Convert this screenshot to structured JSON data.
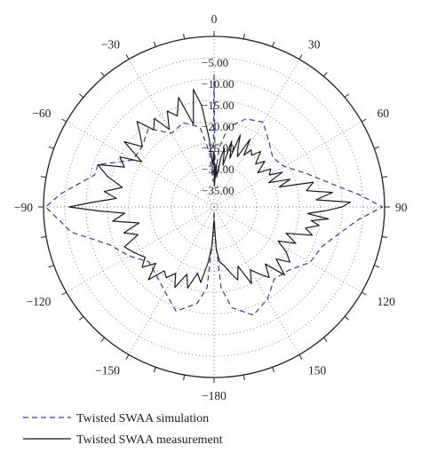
{
  "chart_data": {
    "type": "polar-line",
    "angular_unit": "degrees",
    "angle_zero": "top",
    "angle_direction": "clockwise",
    "angular_ticks": [
      0,
      30,
      60,
      90,
      120,
      150,
      -180,
      -150,
      -120,
      -90,
      -60,
      -30
    ],
    "angular_tick_labels": [
      "0",
      "30",
      "60",
      "90",
      "120",
      "150",
      "−180",
      "−150",
      "−120",
      "−90",
      "−60",
      "−30"
    ],
    "radial_range": [
      -40,
      0
    ],
    "radial_ticks": [
      -5,
      -10,
      -15,
      -20,
      -25,
      -30,
      -35
    ],
    "radial_tick_labels": [
      "−5.00",
      "−10.00",
      "−15.00",
      "−20.00",
      "−25.00",
      "−30.00",
      "−35.00"
    ],
    "grid": true,
    "legend_position": "bottom-left",
    "series": [
      {
        "name": "Twisted SWAA simulation",
        "style": "dashed",
        "color": "#3a3a9a",
        "angles": [
          0,
          2,
          5,
          10,
          20,
          30,
          40,
          50,
          60,
          70,
          80,
          85,
          90,
          95,
          100,
          110,
          120,
          130,
          140,
          150,
          160,
          170,
          175,
          178,
          180,
          182,
          185,
          190,
          200,
          210,
          220,
          230,
          240,
          250,
          260,
          270,
          275,
          280,
          285,
          290,
          300,
          310,
          320,
          330,
          340,
          350,
          355,
          358,
          360
        ],
        "values": [
          -9,
          -33,
          -26,
          -21,
          -18,
          -17,
          -20,
          -22,
          -21,
          -17,
          -11,
          -6,
          -0.5,
          -6,
          -9,
          -13,
          -14,
          -17,
          -18,
          -15,
          -13,
          -16,
          -21,
          -33,
          -39,
          -33,
          -21,
          -17,
          -14,
          -17,
          -19,
          -20,
          -17,
          -14,
          -6,
          -0.5,
          -4,
          -8,
          -11,
          -11,
          -18,
          -18,
          -16,
          -20,
          -19,
          -21,
          -27,
          -34,
          -9
        ]
      },
      {
        "name": "Twisted SWAA measurement",
        "style": "solid",
        "color": "#1a1a1a",
        "angles": [
          0,
          1,
          3,
          5,
          8,
          10,
          12,
          15,
          18,
          20,
          22,
          25,
          28,
          30,
          33,
          36,
          40,
          44,
          48,
          52,
          56,
          60,
          63,
          66,
          70,
          73,
          76,
          80,
          83,
          86,
          88,
          90,
          92,
          94,
          96,
          98,
          100,
          103,
          106,
          110,
          114,
          118,
          122,
          126,
          130,
          134,
          138,
          142,
          146,
          150,
          154,
          158,
          162,
          166,
          170,
          174,
          177,
          179,
          180,
          181,
          183,
          186,
          190,
          194,
          198,
          202,
          206,
          210,
          214,
          218,
          222,
          226,
          230,
          234,
          238,
          242,
          246,
          250,
          254,
          258,
          262,
          266,
          268,
          270,
          272,
          275,
          278,
          282,
          286,
          290,
          294,
          298,
          302,
          306,
          310,
          314,
          318,
          322,
          326,
          330,
          334,
          338,
          342,
          346,
          350,
          353,
          356,
          358,
          360
        ],
        "values": [
          -27,
          -35,
          -30,
          -33,
          -28,
          -26,
          -30,
          -24,
          -28,
          -22,
          -25,
          -27,
          -22,
          -26,
          -24,
          -25,
          -23,
          -26,
          -24,
          -27,
          -24,
          -25,
          -22,
          -26,
          -21,
          -24,
          -16,
          -18,
          -12,
          -16,
          -8,
          -10,
          -14,
          -18,
          -13,
          -17,
          -15,
          -18,
          -16,
          -22,
          -19,
          -23,
          -20,
          -18,
          -21,
          -17,
          -22,
          -19,
          -21,
          -23,
          -20,
          -25,
          -22,
          -24,
          -26,
          -27,
          -30,
          -36,
          -37,
          -36,
          -31,
          -27,
          -22,
          -24,
          -20,
          -23,
          -19,
          -22,
          -20,
          -21,
          -17,
          -21,
          -18,
          -20,
          -19,
          -18,
          -17,
          -21,
          -18,
          -22,
          -16,
          -19,
          -13,
          -6,
          -11,
          -17,
          -14,
          -18,
          -14,
          -11,
          -17,
          -15,
          -20,
          -14,
          -18,
          -16,
          -13,
          -17,
          -15,
          -19,
          -15,
          -17,
          -13,
          -20,
          -12,
          -16,
          -24,
          -30,
          -27
        ]
      }
    ]
  }
}
